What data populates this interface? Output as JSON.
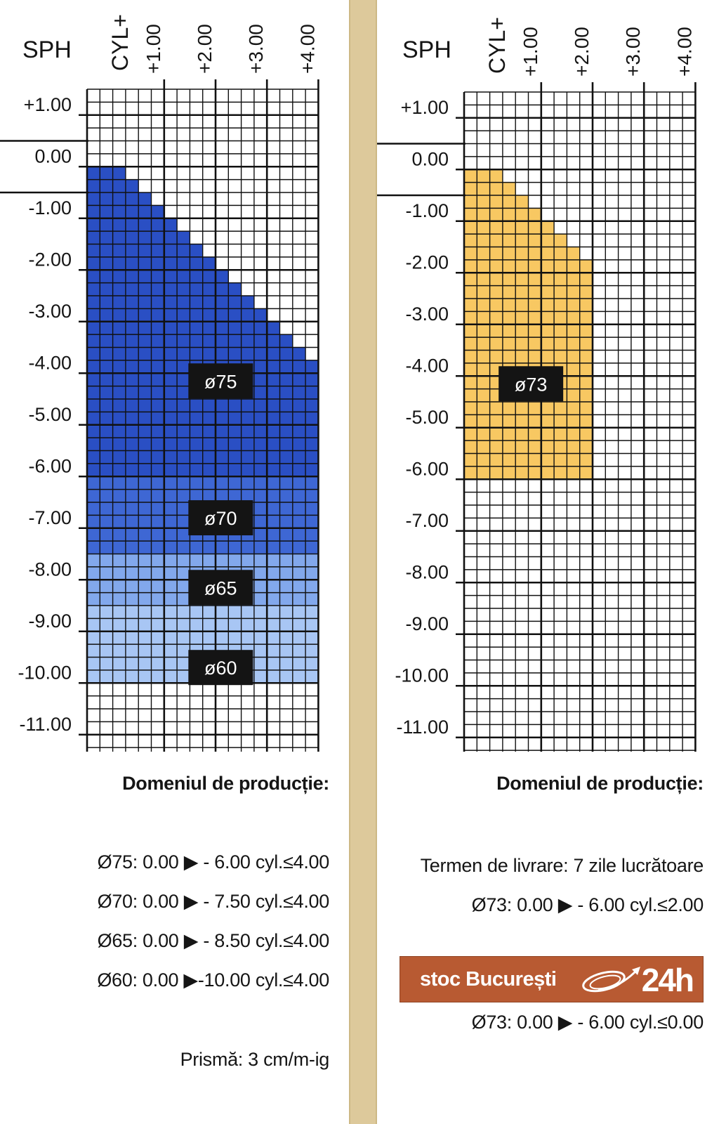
{
  "colors": {
    "blue_75": "#2a4fc4",
    "blue_70": "#3e67d4",
    "blue_65": "#82a8ec",
    "blue_60": "#a8c6f4",
    "orange": "#ec7a44",
    "yellow": "#f8c862",
    "grid": "#111111",
    "label_bg": "#141414",
    "banner": "#b85a32",
    "divider": "#ddc99b"
  },
  "chart_data": [
    {
      "type": "heatmap",
      "xlabel": "CYL+",
      "ylabel": "SPH",
      "xlim": [
        0,
        4.5
      ],
      "ylim": [
        -11.5,
        1.5
      ],
      "x_ticks": [
        "+1.00",
        "+2.00",
        "+3.00",
        "+4.00"
      ],
      "y_ticks": [
        "+1.00",
        "0.00",
        "-1.00",
        "-2.00",
        "-3.00",
        "-4.00",
        "-5.00",
        "-6.00",
        "-7.00",
        "-8.00",
        "-9.00",
        "-10.00",
        "-11.00"
      ],
      "regions": [
        {
          "name": "ø75",
          "sph_from": 0.0,
          "sph_to": -6.0,
          "cyl_max": 4.0,
          "color": "blue_75"
        },
        {
          "name": "ø70",
          "sph_from": -6.0,
          "sph_to": -7.5,
          "cyl_max": 4.0,
          "color": "blue_70"
        },
        {
          "name": "ø65",
          "sph_from": -7.5,
          "sph_to": -8.5,
          "cyl_max": 4.0,
          "color": "blue_65"
        },
        {
          "name": "ø60",
          "sph_from": -8.5,
          "sph_to": -10.0,
          "cyl_max": 4.0,
          "color": "blue_60"
        }
      ],
      "region_labels": [
        {
          "text": "ø75",
          "sph": -4.15,
          "cyl": 2.1
        },
        {
          "text": "ø70",
          "sph": -6.8,
          "cyl": 2.1
        },
        {
          "text": "ø65",
          "sph": -8.15,
          "cyl": 2.1
        },
        {
          "text": "ø60",
          "sph": -9.7,
          "cyl": 2.1
        }
      ]
    },
    {
      "type": "heatmap",
      "xlabel": "CYL+",
      "ylabel": "SPH",
      "xlim": [
        0,
        4.5
      ],
      "ylim": [
        -11.5,
        1.5
      ],
      "x_ticks": [
        "+1.00",
        "+2.00",
        "+3.00",
        "+4.00"
      ],
      "y_ticks": [
        "+1.00",
        "0.00",
        "-1.00",
        "-2.00",
        "-3.00",
        "-4.00",
        "-5.00",
        "-6.00",
        "-7.00",
        "-8.00",
        "-9.00",
        "-10.00",
        "-11.00"
      ],
      "regions": [
        {
          "name": "ø73 stoc",
          "sph_from": 0.0,
          "sph_to": -6.0,
          "cyl_max": 0.0,
          "color": "orange"
        },
        {
          "name": "ø73",
          "sph_from": 0.0,
          "sph_to": -6.0,
          "cyl_max": 2.0,
          "color": "yellow"
        }
      ],
      "region_labels": [
        {
          "text": "ø73",
          "sph": -4.15,
          "cyl": 0.8
        }
      ]
    }
  ],
  "left_notes": {
    "heading": "Domeniul de producție:",
    "lines": [
      "Ø75: 0.00 ▶ - 6.00 cyl.≤4.00",
      "Ø70: 0.00 ▶ - 7.50 cyl.≤4.00",
      "Ø65: 0.00 ▶ - 8.50 cyl.≤4.00",
      "Ø60: 0.00 ▶-10.00 cyl.≤4.00"
    ],
    "prism": "Prismă: 3 cm/m-ig"
  },
  "right_notes": {
    "heading": "Domeniul de producție:",
    "delivery": "Termen de livrare: 7 zile lucrătoare",
    "range_line": "Ø73: 0.00 ▶ - 6.00 cyl.≤2.00",
    "stock_label": "stoc București",
    "stock_hours": "24h",
    "stock_line": "Ø73: 0.00 ▶ - 6.00 cyl.≤0.00"
  }
}
